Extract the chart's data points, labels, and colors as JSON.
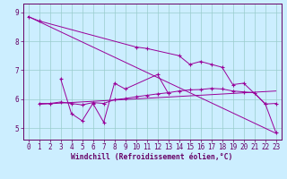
{
  "xlabel": "Windchill (Refroidissement éolien,°C)",
  "background_color": "#cceeff",
  "grid_color": "#99cccc",
  "line_color": "#990099",
  "x_min": -0.5,
  "x_max": 23.5,
  "y_min": 4.6,
  "y_max": 9.3,
  "yticks": [
    5,
    6,
    7,
    8,
    9
  ],
  "xticks": [
    0,
    1,
    2,
    3,
    4,
    5,
    6,
    7,
    8,
    9,
    10,
    11,
    12,
    13,
    14,
    15,
    16,
    17,
    18,
    19,
    20,
    21,
    22,
    23
  ],
  "line1_x": [
    0,
    1,
    10,
    11,
    14,
    15,
    16,
    17,
    18,
    19,
    20,
    22,
    23
  ],
  "line1_y": [
    8.85,
    8.7,
    7.8,
    7.75,
    7.5,
    7.2,
    7.3,
    7.2,
    7.1,
    6.5,
    6.55,
    5.85,
    4.85
  ],
  "line2_x": [
    3,
    4,
    5,
    6,
    7,
    8,
    9,
    12,
    13
  ],
  "line2_y": [
    6.7,
    5.5,
    5.25,
    5.85,
    5.2,
    6.55,
    6.35,
    6.85,
    6.2
  ],
  "line3_x": [
    1,
    2,
    3,
    4,
    5,
    6,
    7,
    8,
    9,
    10,
    11,
    12,
    13,
    14,
    15,
    16,
    17,
    18,
    19,
    20,
    21,
    22,
    23
  ],
  "line3_y": [
    5.85,
    5.85,
    5.9,
    5.85,
    5.8,
    5.88,
    5.85,
    5.98,
    6.02,
    6.08,
    6.13,
    6.18,
    6.22,
    6.28,
    6.32,
    6.33,
    6.37,
    6.35,
    6.28,
    6.25,
    6.22,
    5.83,
    5.85
  ],
  "trend1_x": [
    0,
    23
  ],
  "trend1_y": [
    8.85,
    4.82
  ],
  "trend2_x": [
    1,
    23
  ],
  "trend2_y": [
    5.82,
    6.28
  ]
}
